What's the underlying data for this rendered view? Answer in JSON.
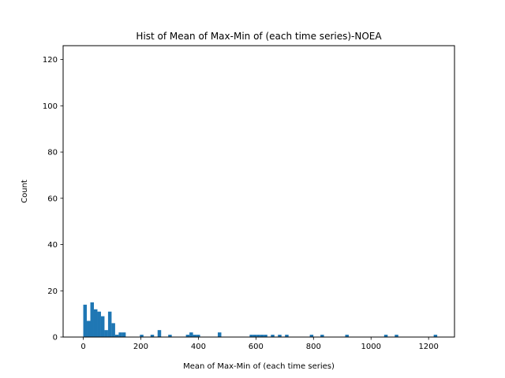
{
  "chart_data": {
    "type": "bar",
    "title": "Hist of Mean of Max-Min of (each time series)-NOEA",
    "xlabel": "Mean of Max-Min of (each time series)",
    "ylabel": "Count",
    "xlim": [
      -70,
      1290
    ],
    "ylim": [
      0,
      126
    ],
    "xticks": [
      0,
      200,
      400,
      600,
      800,
      1000,
      1200
    ],
    "yticks": [
      0,
      20,
      40,
      60,
      80,
      100,
      120
    ],
    "xtick_labels": [
      "0",
      "200",
      "400",
      "600",
      "800",
      "1000",
      "1200"
    ],
    "ytick_labels": [
      "0",
      "20",
      "40",
      "60",
      "80",
      "100",
      "120"
    ],
    "bin_width": 12.3,
    "grid": false,
    "bar_color": "#1f77b4",
    "bins": [
      {
        "x0": 0.0,
        "count": 14
      },
      {
        "x0": 12.3,
        "count": 7
      },
      {
        "x0": 24.6,
        "count": 15
      },
      {
        "x0": 36.9,
        "count": 12
      },
      {
        "x0": 49.2,
        "count": 11
      },
      {
        "x0": 61.5,
        "count": 9
      },
      {
        "x0": 73.8,
        "count": 3
      },
      {
        "x0": 86.1,
        "count": 11
      },
      {
        "x0": 98.4,
        "count": 6
      },
      {
        "x0": 110.7,
        "count": 1
      },
      {
        "x0": 123.0,
        "count": 2
      },
      {
        "x0": 135.3,
        "count": 2
      },
      {
        "x0": 196.8,
        "count": 1
      },
      {
        "x0": 233.7,
        "count": 1
      },
      {
        "x0": 258.3,
        "count": 3
      },
      {
        "x0": 295.2,
        "count": 1
      },
      {
        "x0": 356.7,
        "count": 1
      },
      {
        "x0": 369.0,
        "count": 2
      },
      {
        "x0": 381.3,
        "count": 1
      },
      {
        "x0": 393.6,
        "count": 1
      },
      {
        "x0": 467.4,
        "count": 2
      },
      {
        "x0": 578.1,
        "count": 1
      },
      {
        "x0": 590.4,
        "count": 1
      },
      {
        "x0": 602.7,
        "count": 1
      },
      {
        "x0": 615.0,
        "count": 1
      },
      {
        "x0": 627.3,
        "count": 1
      },
      {
        "x0": 651.9,
        "count": 1
      },
      {
        "x0": 676.5,
        "count": 1
      },
      {
        "x0": 701.1,
        "count": 1
      },
      {
        "x0": 787.2,
        "count": 1
      },
      {
        "x0": 824.1,
        "count": 1
      },
      {
        "x0": 910.2,
        "count": 1
      },
      {
        "x0": 1045.5,
        "count": 1
      },
      {
        "x0": 1082.4,
        "count": 1
      },
      {
        "x0": 1217.7,
        "count": 1
      }
    ]
  }
}
